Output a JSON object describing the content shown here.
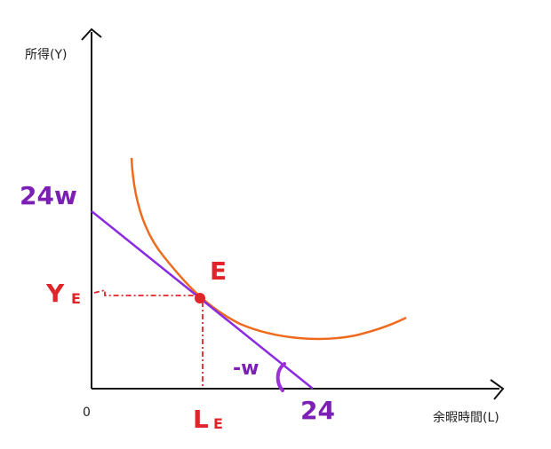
{
  "axes": {
    "y_label": "所得(Y)",
    "x_label": "余暇時間(L)",
    "origin": "0"
  },
  "labels": {
    "intercept_y": "24w",
    "intercept_x": "24",
    "slope": "-w",
    "equilibrium": "E",
    "y_e": {
      "main": "Y",
      "sub": "E"
    },
    "l_e": {
      "main": "L",
      "sub": "E"
    }
  }
}
